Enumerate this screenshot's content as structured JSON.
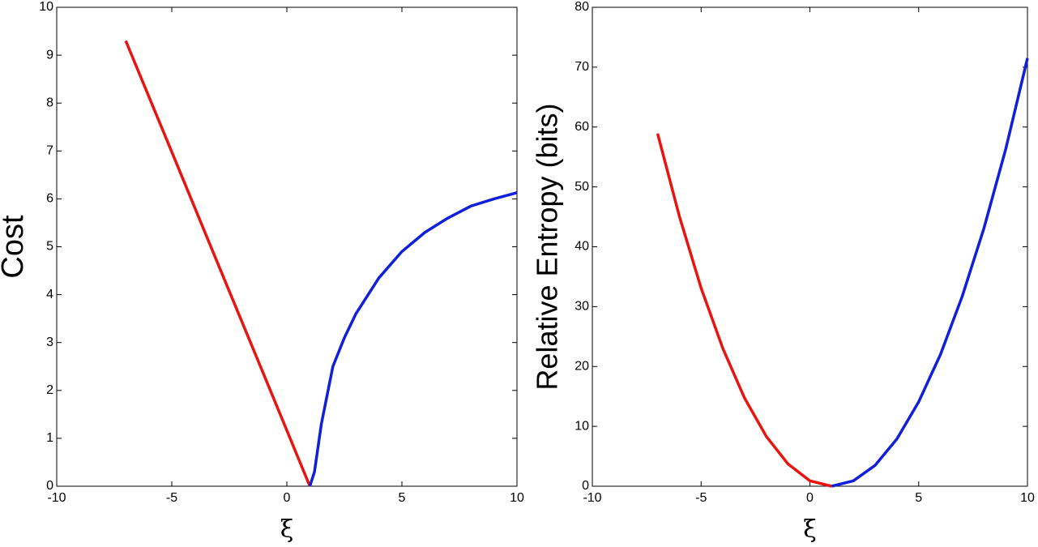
{
  "chart_data": [
    {
      "type": "line",
      "ylabel": "Cost",
      "xlabel": "ξ",
      "xlim": [
        -10,
        10
      ],
      "xticks": [
        -10,
        -5,
        0,
        5,
        10
      ],
      "ylim": [
        0,
        10
      ],
      "yticks": [
        0,
        1,
        2,
        3,
        4,
        5,
        6,
        7,
        8,
        9,
        10
      ],
      "series": [
        {
          "color": "#e8140f",
          "x": [
            -7,
            -5,
            -3,
            -1,
            1
          ],
          "values": [
            9.3,
            6.98,
            4.65,
            2.33,
            0
          ]
        },
        {
          "color": "#1020d8",
          "x": [
            1,
            1.2,
            1.5,
            2,
            2.5,
            3,
            4,
            5,
            6,
            7,
            8,
            9,
            10
          ],
          "values": [
            0,
            0.3,
            1.3,
            2.5,
            3.1,
            3.6,
            4.35,
            4.9,
            5.3,
            5.6,
            5.85,
            6.0,
            6.13
          ]
        }
      ]
    },
    {
      "type": "line",
      "ylabel": "Relative Entropy (bits)",
      "xlabel": "ξ",
      "xlim": [
        -10,
        10
      ],
      "xticks": [
        -10,
        -5,
        0,
        5,
        10
      ],
      "ylim": [
        0,
        80
      ],
      "yticks": [
        0,
        10,
        20,
        30,
        40,
        50,
        60,
        70,
        80
      ],
      "series": [
        {
          "color": "#e8140f",
          "x": [
            -7,
            -6,
            -5,
            -4,
            -3,
            -2,
            -1,
            0,
            1
          ],
          "values": [
            58.9,
            45.1,
            33.1,
            23,
            14.7,
            8.3,
            3.7,
            0.9,
            0
          ]
        },
        {
          "color": "#1020d8",
          "x": [
            1,
            2,
            3,
            4,
            5,
            6,
            7,
            8,
            9,
            10
          ],
          "values": [
            0,
            0.9,
            3.5,
            7.9,
            14.1,
            22,
            31.7,
            43.1,
            56.3,
            71.5
          ]
        }
      ]
    }
  ]
}
